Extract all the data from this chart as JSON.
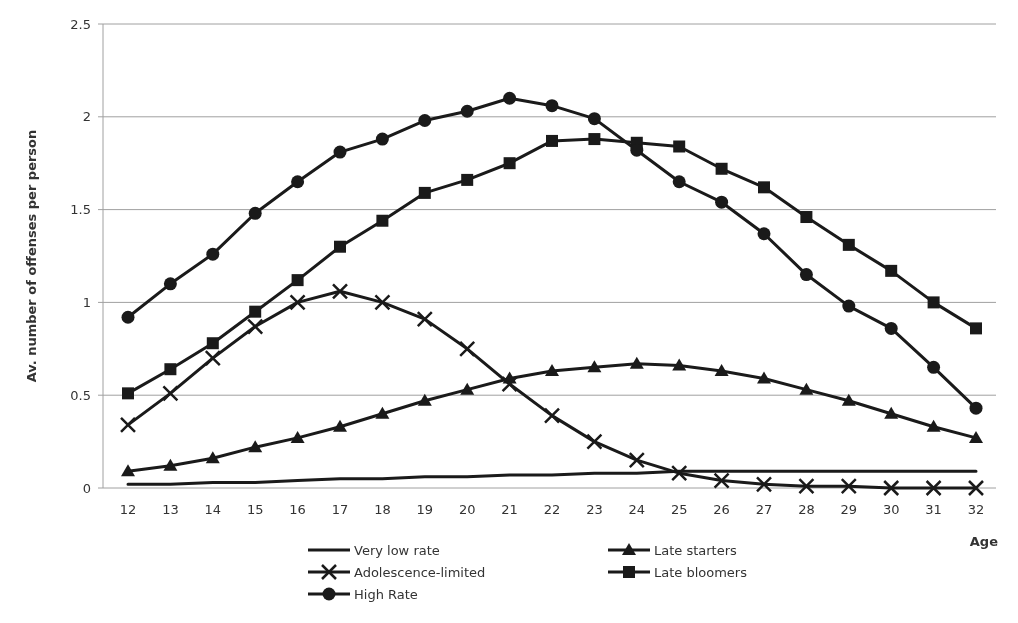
{
  "chart_data": {
    "type": "line",
    "xlabel": "Age",
    "ylabel": "Av. number of offenses per person",
    "categories": [
      "12",
      "13",
      "14",
      "15",
      "16",
      "17",
      "18",
      "19",
      "20",
      "21",
      "22",
      "23",
      "24",
      "25",
      "26",
      "27",
      "28",
      "29",
      "30",
      "31",
      "32"
    ],
    "ylim": [
      0,
      2.5
    ],
    "yticks": [
      0,
      0.5,
      1,
      1.5,
      2,
      2.5
    ],
    "grid": "y",
    "legend": "bottom",
    "series": [
      {
        "name": "Very low rate",
        "color": "#1a1a1a",
        "marker": "none",
        "values": [
          0.02,
          0.02,
          0.03,
          0.03,
          0.04,
          0.05,
          0.05,
          0.06,
          0.06,
          0.07,
          0.07,
          0.08,
          0.08,
          0.09,
          0.09,
          0.09,
          0.09,
          0.09,
          0.09,
          0.09,
          0.09
        ]
      },
      {
        "name": "Late starters",
        "color": "#1a1a1a",
        "marker": "triangle",
        "values": [
          0.09,
          0.12,
          0.16,
          0.22,
          0.27,
          0.33,
          0.4,
          0.47,
          0.53,
          0.59,
          0.63,
          0.65,
          0.67,
          0.66,
          0.63,
          0.59,
          0.53,
          0.47,
          0.4,
          0.33,
          0.27
        ]
      },
      {
        "name": "Adolescence-limited",
        "color": "#1a1a1a",
        "marker": "cross",
        "values": [
          0.34,
          0.51,
          0.7,
          0.87,
          1.0,
          1.06,
          1.0,
          0.91,
          0.75,
          0.56,
          0.39,
          0.25,
          0.15,
          0.08,
          0.04,
          0.02,
          0.01,
          0.01,
          0,
          0,
          0
        ]
      },
      {
        "name": "Late bloomers",
        "color": "#1a1a1a",
        "marker": "square",
        "values": [
          0.51,
          0.64,
          0.78,
          0.95,
          1.12,
          1.3,
          1.44,
          1.59,
          1.66,
          1.75,
          1.87,
          1.88,
          1.86,
          1.84,
          1.72,
          1.62,
          1.46,
          1.31,
          1.17,
          1.0,
          0.86
        ]
      },
      {
        "name": "High Rate",
        "color": "#1a1a1a",
        "marker": "circle",
        "values": [
          0.92,
          1.1,
          1.26,
          1.48,
          1.65,
          1.81,
          1.88,
          1.98,
          2.03,
          2.1,
          2.06,
          1.99,
          1.82,
          1.65,
          1.54,
          1.37,
          1.15,
          0.98,
          0.86,
          0.65,
          0.43
        ]
      }
    ]
  }
}
